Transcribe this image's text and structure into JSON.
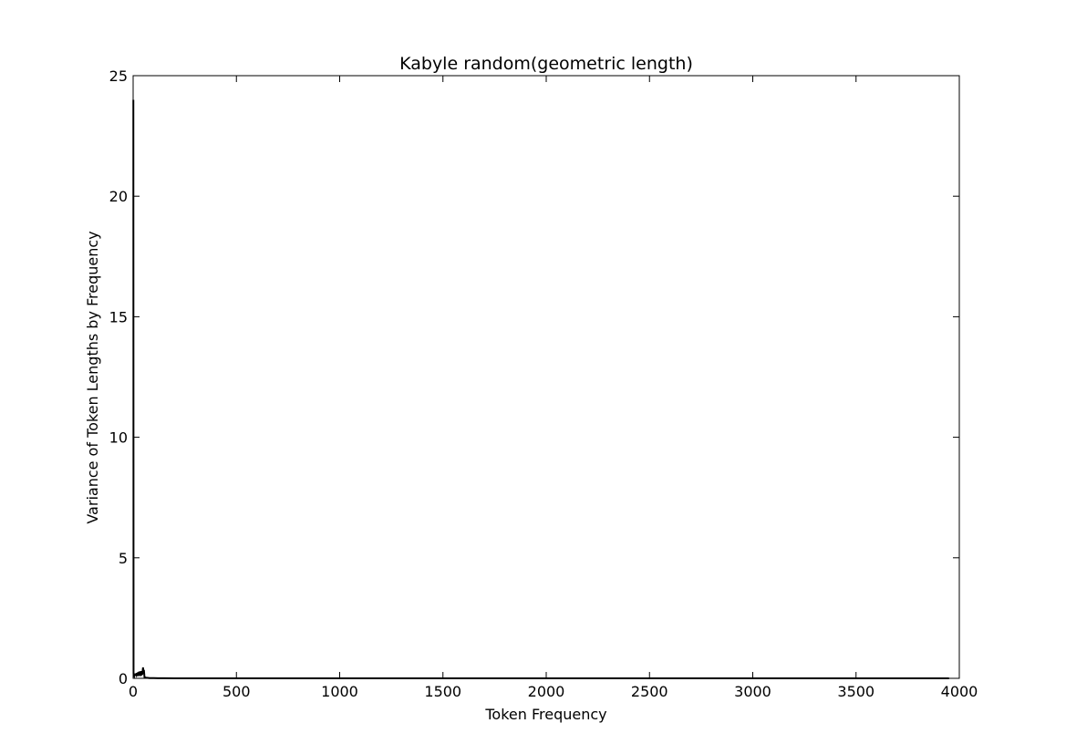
{
  "chart_data": {
    "type": "line",
    "title": "Kabyle random(geometric length)",
    "xlabel": "Token Frequency",
    "ylabel": "Variance of Token Lengths by Frequency",
    "xlim": [
      0,
      4000
    ],
    "ylim": [
      0,
      25
    ],
    "xticks": [
      0,
      500,
      1000,
      1500,
      2000,
      2500,
      3000,
      3500,
      4000
    ],
    "yticks": [
      0,
      5,
      10,
      15,
      20,
      25
    ],
    "grid": false,
    "line_color": "#000000",
    "series": [
      {
        "x": [
          1,
          2,
          3,
          4,
          5,
          6,
          7,
          8,
          9,
          10,
          12,
          14,
          16,
          18,
          20,
          22,
          24,
          26,
          28,
          30,
          32,
          34,
          36,
          38,
          40,
          42,
          44,
          46,
          48,
          50,
          52,
          55,
          60,
          70,
          80,
          100,
          120,
          150,
          200,
          300,
          500,
          800,
          1200,
          2000,
          3000,
          3950
        ],
        "y": [
          24.0,
          0.2,
          0.15,
          0.12,
          0.1,
          0.15,
          0.1,
          0.18,
          0.12,
          0.2,
          0.1,
          0.2,
          0.15,
          0.22,
          0.1,
          0.18,
          0.25,
          0.1,
          0.2,
          0.28,
          0.15,
          0.22,
          0.1,
          0.3,
          0.12,
          0.28,
          0.15,
          0.3,
          0.45,
          0.2,
          0.35,
          0.05,
          0.03,
          0.02,
          0.01,
          0.01,
          0.005,
          0.005,
          0,
          0,
          0,
          0,
          0,
          0,
          0,
          0
        ]
      }
    ]
  }
}
